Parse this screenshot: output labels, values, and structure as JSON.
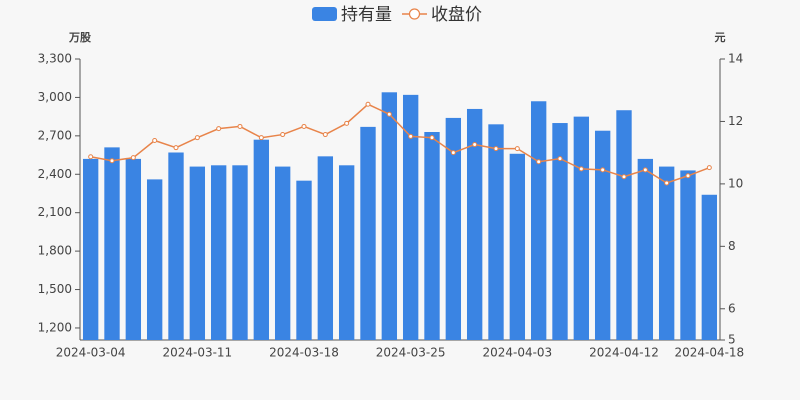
{
  "chart_data": {
    "type": "bar-line",
    "ylabel": "万股",
    "y2label": "元",
    "categories": [
      "2024-03-04",
      null,
      null,
      null,
      null,
      "2024-03-11",
      null,
      null,
      null,
      null,
      "2024-03-18",
      null,
      null,
      null,
      null,
      "2024-03-25",
      null,
      null,
      null,
      null,
      "2024-04-03",
      null,
      null,
      null,
      null,
      "2024-04-12",
      null,
      null,
      null,
      "2024-04-18"
    ],
    "series": [
      {
        "name": "持有量",
        "type": "bar",
        "color": "#3a84e3",
        "values": [
          2520,
          2610,
          2520,
          2360,
          2570,
          2460,
          2470,
          2470,
          2670,
          2460,
          2350,
          2540,
          2470,
          2770,
          3040,
          3020,
          2730,
          2840,
          2910,
          2790,
          2560,
          2970,
          2800,
          2850,
          2740,
          2900,
          2520,
          2460,
          2430,
          2240
        ]
      },
      {
        "name": "收盘价",
        "type": "line",
        "axis": "y2",
        "color": "#e8844a",
        "values": [
          10.87,
          10.74,
          10.84,
          11.39,
          11.16,
          11.48,
          11.77,
          11.84,
          11.48,
          11.58,
          11.84,
          11.58,
          11.94,
          12.55,
          12.23,
          11.52,
          11.48,
          11.0,
          11.26,
          11.13,
          11.13,
          10.71,
          10.81,
          10.48,
          10.45,
          10.23,
          10.45,
          10.03,
          10.26,
          10.52
        ]
      }
    ],
    "ylim": [
      1106,
      3300
    ],
    "yticks": [
      {
        "value": 1200,
        "label": "1,200"
      },
      {
        "value": 1500,
        "label": "1,500"
      },
      {
        "value": 1800,
        "label": "1,800"
      },
      {
        "value": 2100,
        "label": "2,100"
      },
      {
        "value": 2400,
        "label": "2,400"
      },
      {
        "value": 2700,
        "label": "2,700"
      },
      {
        "value": 3000,
        "label": "3,000"
      },
      {
        "value": 3300,
        "label": "3,300"
      }
    ],
    "y2lim": [
      5,
      14
    ],
    "y2ticks": [
      5,
      6,
      8,
      10,
      12,
      14
    ],
    "legend": "top"
  }
}
